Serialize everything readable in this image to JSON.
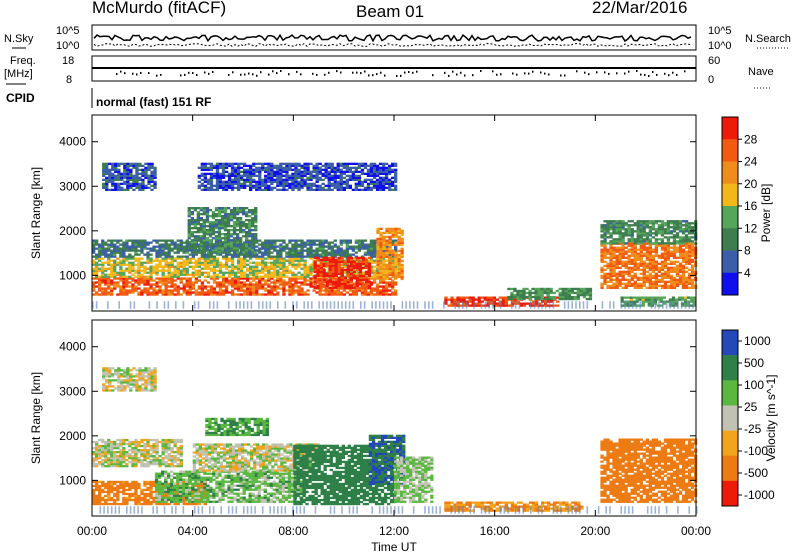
{
  "header": {
    "station": "McMurdo (fitACF)",
    "beam": "Beam 01",
    "date": "22/Mar/2016"
  },
  "top_panels": {
    "nsky_label": "N.Sky",
    "nsearch_label": "N.Search",
    "scale_top": "10^5",
    "scale_bottom": "10^0",
    "freq_label": "Freq.",
    "freq_unit": "[MHz]",
    "freq_ticks": [
      "18",
      "8"
    ],
    "nave_label": "Nave",
    "nave_ticks": [
      "60",
      "0"
    ],
    "cpid_label": "CPID",
    "cpid_value": "normal (fast) 151 RF"
  },
  "colors": {
    "power": [
      "#1010ee",
      "#3a5fa8",
      "#3e7d4e",
      "#56a65a",
      "#f2b81a",
      "#f08c1c",
      "#f25a12",
      "#ee1a0a"
    ],
    "velocity": [
      "#2448b8",
      "#2f7f48",
      "#5ab840",
      "#c2c2b4",
      "#f2a41c",
      "#ee7a12",
      "#ee1a0a"
    ],
    "stubble": "#5b7fbf"
  },
  "chart_data": [
    {
      "type": "heatmap",
      "title": "Power",
      "xlabel": "Time UT",
      "ylabel": "Slant Range [km]",
      "colorbar_label": "Power [dB]",
      "colorbar_ticks": [
        "4",
        "8",
        "12",
        "16",
        "20",
        "24",
        "28"
      ],
      "colorbar_range": [
        0,
        32
      ],
      "xlim": [
        0,
        24
      ],
      "ylim": [
        200,
        4600
      ],
      "x_ticks": [
        "00:00",
        "04:00",
        "08:00",
        "12:00",
        "16:00",
        "20:00",
        "00:00"
      ],
      "y_ticks": [
        "1000",
        "2000",
        "3000",
        "4000"
      ],
      "x_tick_values": [
        0,
        4,
        8,
        12,
        16,
        20,
        24
      ],
      "y_tick_values": [
        1000,
        2000,
        3000,
        4000
      ],
      "blobs": [
        {
          "t0": 0.0,
          "t1": 12.0,
          "r0": 550,
          "r1": 950,
          "v": 26
        },
        {
          "t0": 0.0,
          "t1": 12.0,
          "r0": 950,
          "r1": 1400,
          "v": 17
        },
        {
          "t0": 0.0,
          "t1": 12.0,
          "r0": 1400,
          "r1": 1800,
          "v": 9
        },
        {
          "t0": 8.8,
          "t1": 11.0,
          "r0": 700,
          "r1": 1400,
          "v": 29
        },
        {
          "t0": 11.3,
          "t1": 12.3,
          "r0": 900,
          "r1": 2050,
          "v": 22
        },
        {
          "t0": 3.8,
          "t1": 6.5,
          "r0": 1500,
          "r1": 2500,
          "v": 10
        },
        {
          "t0": 0.4,
          "t1": 2.5,
          "r0": 2900,
          "r1": 3500,
          "v": 6
        },
        {
          "t0": 4.2,
          "t1": 12.0,
          "r0": 2900,
          "r1": 3500,
          "v": 5
        },
        {
          "t0": 14.0,
          "t1": 18.5,
          "r0": 300,
          "r1": 500,
          "v": 28
        },
        {
          "t0": 16.5,
          "t1": 19.8,
          "r0": 450,
          "r1": 700,
          "v": 12
        },
        {
          "t0": 20.2,
          "t1": 24.0,
          "r0": 700,
          "r1": 1700,
          "v": 24
        },
        {
          "t0": 20.2,
          "t1": 24.0,
          "r0": 1700,
          "r1": 2200,
          "v": 11
        },
        {
          "t0": 21.0,
          "t1": 24.0,
          "r0": 300,
          "r1": 500,
          "v": 13
        }
      ]
    },
    {
      "type": "heatmap",
      "title": "Velocity",
      "xlabel": "Time UT",
      "ylabel": "Slant Range [km]",
      "colorbar_label": "Velocity [m s^-1]",
      "colorbar_ticks": [
        "1000",
        "500",
        "100",
        "25",
        "-25",
        "-100",
        "-500",
        "-1000"
      ],
      "xlim": [
        0,
        24
      ],
      "ylim": [
        200,
        4600
      ],
      "x_ticks": [
        "00:00",
        "04:00",
        "08:00",
        "12:00",
        "16:00",
        "20:00",
        "00:00"
      ],
      "y_ticks": [
        "1000",
        "2000",
        "3000",
        "4000"
      ],
      "x_tick_values": [
        0,
        4,
        8,
        12,
        16,
        20,
        24
      ],
      "y_tick_values": [
        1000,
        2000,
        3000,
        4000
      ],
      "blobs": [
        {
          "t0": 0.0,
          "t1": 4.5,
          "r0": 450,
          "r1": 950,
          "v": -150
        },
        {
          "t0": 0.0,
          "t1": 3.5,
          "r0": 1300,
          "r1": 1900,
          "v": 0
        },
        {
          "t0": 2.5,
          "t1": 8.5,
          "r0": 500,
          "r1": 1200,
          "v": 60
        },
        {
          "t0": 4.0,
          "t1": 9.0,
          "r0": 1200,
          "r1": 1800,
          "v": 0
        },
        {
          "t0": 8.0,
          "t1": 12.0,
          "r0": 450,
          "r1": 1800,
          "v": 200
        },
        {
          "t0": 11.0,
          "t1": 12.4,
          "r0": 900,
          "r1": 2000,
          "v": 500
        },
        {
          "t0": 12.0,
          "t1": 13.5,
          "r0": 500,
          "r1": 1500,
          "v": 40
        },
        {
          "t0": 4.5,
          "t1": 7.0,
          "r0": 2000,
          "r1": 2400,
          "v": 100
        },
        {
          "t0": 14.0,
          "t1": 19.5,
          "r0": 300,
          "r1": 500,
          "v": -100
        },
        {
          "t0": 20.2,
          "t1": 24.0,
          "r0": 500,
          "r1": 1900,
          "v": -300
        },
        {
          "t0": 0.4,
          "t1": 2.5,
          "r0": 3000,
          "r1": 3500,
          "v": 0
        }
      ]
    }
  ]
}
